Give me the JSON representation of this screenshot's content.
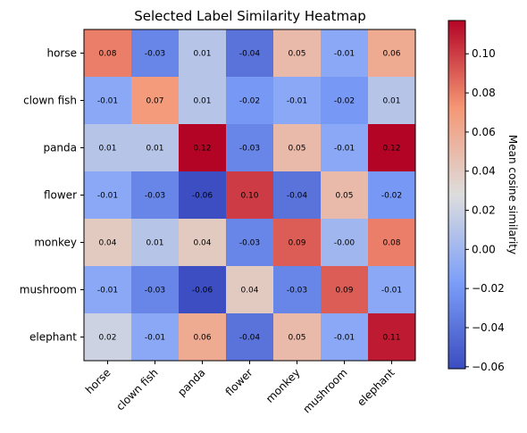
{
  "chart_data": {
    "type": "heatmap",
    "title": "Selected Label Similarity Heatmap",
    "rows": [
      "horse",
      "clown fish",
      "panda",
      "flower",
      "monkey",
      "mushroom",
      "elephant"
    ],
    "columns": [
      "horse",
      "clown fish",
      "panda",
      "flower",
      "monkey",
      "mushroom",
      "elephant"
    ],
    "values": [
      [
        0.08,
        -0.03,
        0.01,
        -0.04,
        0.05,
        -0.01,
        0.06
      ],
      [
        -0.01,
        0.07,
        0.01,
        -0.02,
        -0.01,
        -0.02,
        0.01
      ],
      [
        0.01,
        0.01,
        0.12,
        -0.03,
        0.05,
        -0.01,
        0.12
      ],
      [
        -0.01,
        -0.03,
        -0.06,
        0.1,
        -0.04,
        0.05,
        -0.02
      ],
      [
        0.04,
        0.01,
        0.04,
        -0.03,
        0.09,
        -0.0,
        0.08
      ],
      [
        -0.01,
        -0.03,
        -0.06,
        0.04,
        -0.03,
        0.09,
        -0.01
      ],
      [
        0.02,
        -0.01,
        0.06,
        -0.04,
        0.05,
        -0.01,
        0.11
      ]
    ],
    "cell_labels": [
      [
        "0.08",
        "-0.03",
        "0.01",
        "-0.04",
        "0.05",
        "-0.01",
        "0.06"
      ],
      [
        "-0.01",
        "0.07",
        "0.01",
        "-0.02",
        "-0.01",
        "-0.02",
        "0.01"
      ],
      [
        "0.01",
        "0.01",
        "0.12",
        "-0.03",
        "0.05",
        "-0.01",
        "0.12"
      ],
      [
        "-0.01",
        "-0.03",
        "-0.06",
        "0.10",
        "-0.04",
        "0.05",
        "-0.02"
      ],
      [
        "0.04",
        "0.01",
        "0.04",
        "-0.03",
        "0.09",
        "-0.00",
        "0.08"
      ],
      [
        "-0.01",
        "-0.03",
        "-0.06",
        "0.04",
        "-0.03",
        "0.09",
        "-0.01"
      ],
      [
        "0.02",
        "-0.01",
        "0.06",
        "-0.04",
        "0.05",
        "-0.01",
        "0.11"
      ]
    ],
    "colormap": "coolwarm",
    "colorbar": {
      "label": "Mean cosine similarity",
      "range": [
        -0.061,
        0.117
      ],
      "ticks": [
        -0.06,
        -0.04,
        -0.02,
        0.0,
        0.02,
        0.04,
        0.06,
        0.08,
        0.1
      ],
      "tick_labels": [
        "−0.06",
        "−0.04",
        "−0.02",
        "0.00",
        "0.02",
        "0.04",
        "0.06",
        "0.08",
        "0.10"
      ]
    }
  }
}
